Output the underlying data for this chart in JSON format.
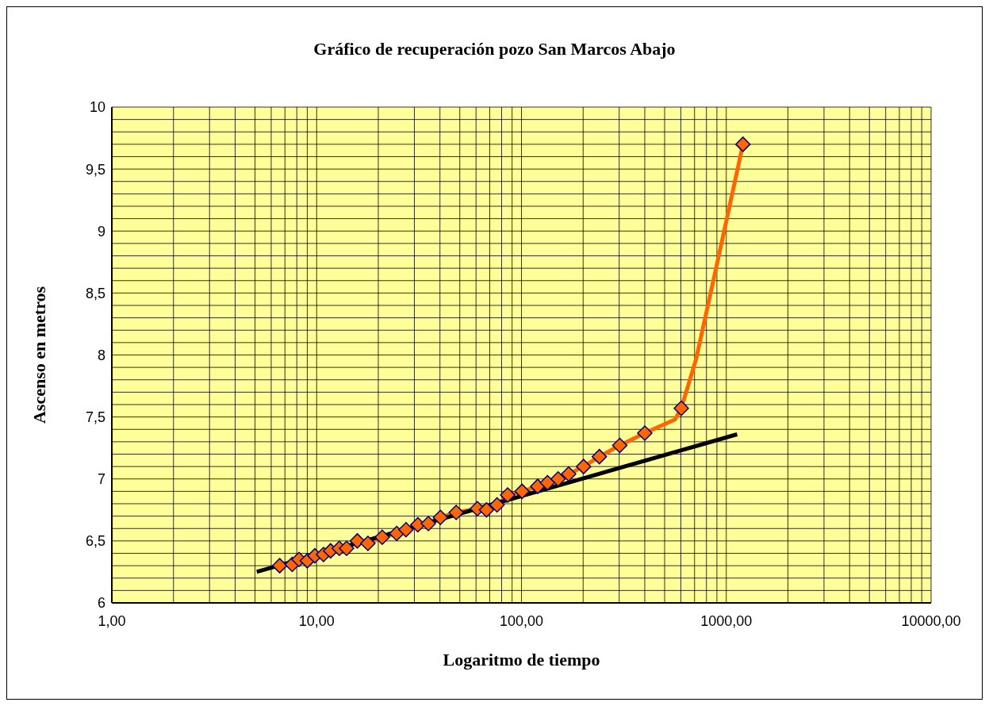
{
  "chart_data": {
    "type": "line",
    "title": "Gráfico de recuperación pozo San Marcos Abajo",
    "xlabel": "Logaritmo de tiempo",
    "ylabel": "Ascenso en metros",
    "log": "x",
    "grid": true,
    "xlim": [
      1,
      10000
    ],
    "xticks": [
      {
        "value": 1,
        "label": "1,00"
      },
      {
        "value": 2,
        "label": null
      },
      {
        "value": 3,
        "label": null
      },
      {
        "value": 4,
        "label": null
      },
      {
        "value": 5,
        "label": null
      },
      {
        "value": 6,
        "label": null
      },
      {
        "value": 7,
        "label": null
      },
      {
        "value": 8,
        "label": null
      },
      {
        "value": 9,
        "label": null
      },
      {
        "value": 10,
        "label": "10,00"
      },
      {
        "value": 20,
        "label": null
      },
      {
        "value": 30,
        "label": null
      },
      {
        "value": 40,
        "label": null
      },
      {
        "value": 50,
        "label": null
      },
      {
        "value": 60,
        "label": null
      },
      {
        "value": 70,
        "label": null
      },
      {
        "value": 80,
        "label": null
      },
      {
        "value": 90,
        "label": null
      },
      {
        "value": 100,
        "label": "100,00"
      },
      {
        "value": 200,
        "label": null
      },
      {
        "value": 300,
        "label": null
      },
      {
        "value": 400,
        "label": null
      },
      {
        "value": 500,
        "label": null
      },
      {
        "value": 600,
        "label": null
      },
      {
        "value": 700,
        "label": null
      },
      {
        "value": 800,
        "label": null
      },
      {
        "value": 900,
        "label": null
      },
      {
        "value": 1000,
        "label": "1000,00"
      },
      {
        "value": 2000,
        "label": null
      },
      {
        "value": 3000,
        "label": null
      },
      {
        "value": 4000,
        "label": null
      },
      {
        "value": 5000,
        "label": null
      },
      {
        "value": 6000,
        "label": null
      },
      {
        "value": 7000,
        "label": null
      },
      {
        "value": 8000,
        "label": null
      },
      {
        "value": 9000,
        "label": null
      },
      {
        "value": 10000,
        "label": "10000,00"
      }
    ],
    "ylim": [
      6,
      10
    ],
    "yticks": [
      6,
      {
        "value": 6.1,
        "label": null
      },
      {
        "value": 6.2,
        "label": null
      },
      {
        "value": 6.3,
        "label": null
      },
      {
        "value": 6.4,
        "label": null
      },
      {
        "value": 6.5,
        "label": "6,5"
      },
      {
        "value": 6.6,
        "label": null
      },
      {
        "value": 6.7,
        "label": null
      },
      {
        "value": 6.8,
        "label": null
      },
      {
        "value": 6.9,
        "label": null
      },
      7,
      {
        "value": 7.1,
        "label": null
      },
      {
        "value": 7.2,
        "label": null
      },
      {
        "value": 7.3,
        "label": null
      },
      {
        "value": 7.4,
        "label": null
      },
      {
        "value": 7.5,
        "label": "7,5"
      },
      {
        "value": 7.6,
        "label": null
      },
      {
        "value": 7.7,
        "label": null
      },
      {
        "value": 7.8,
        "label": null
      },
      {
        "value": 7.9,
        "label": null
      },
      8,
      {
        "value": 8.1,
        "label": null
      },
      {
        "value": 8.2,
        "label": null
      },
      {
        "value": 8.3,
        "label": null
      },
      {
        "value": 8.4,
        "label": null
      },
      {
        "value": 8.5,
        "label": "8,5"
      },
      {
        "value": 8.6,
        "label": null
      },
      {
        "value": 8.7,
        "label": null
      },
      {
        "value": 8.8,
        "label": null
      },
      {
        "value": 8.9,
        "label": null
      },
      9,
      {
        "value": 9.1,
        "label": null
      },
      {
        "value": 9.2,
        "label": null
      },
      {
        "value": 9.3,
        "label": null
      },
      {
        "value": 9.4,
        "label": null
      },
      {
        "value": 9.5,
        "label": "9,5"
      },
      {
        "value": 9.6,
        "label": null
      },
      {
        "value": 9.7,
        "label": null
      },
      {
        "value": 9.8,
        "label": null
      },
      {
        "value": 9.9,
        "label": null
      },
      10
    ],
    "series": [
      {
        "color": "#ff6600",
        "marker": "none",
        "x": [
          6.6,
          7.6,
          8.2,
          9.0,
          9.8,
          10.8,
          11.7,
          12.9,
          14.0,
          15.8,
          17.8,
          20.9,
          24.6,
          27.3,
          31.2,
          35.1,
          40.2,
          48.0,
          60.9,
          67.5,
          76.0,
          85.6,
          100.7,
          120,
          134,
          151,
          170,
          201,
          240,
          302,
          400,
          562,
          603,
          713,
          919,
          1206
        ],
        "values": [
          6.3,
          6.31,
          6.35,
          6.34,
          6.38,
          6.39,
          6.42,
          6.44,
          6.44,
          6.5,
          6.48,
          6.53,
          6.56,
          6.59,
          6.63,
          6.64,
          6.69,
          6.73,
          6.76,
          6.75,
          6.79,
          6.87,
          6.9,
          6.94,
          6.97,
          7.0,
          7.04,
          7.1,
          7.18,
          7.27,
          7.37,
          7.48,
          7.57,
          7.97,
          8.8,
          9.7
        ]
      },
      {
        "type": "scatter",
        "color": "#ff6600",
        "marker": "diamond",
        "x": [
          6.6,
          7.6,
          8.2,
          9.0,
          9.8,
          10.8,
          11.7,
          12.9,
          14.0,
          15.8,
          17.8,
          20.9,
          24.6,
          27.3,
          31.2,
          35.1,
          40.2,
          48.0,
          60.9,
          67.5,
          76.0,
          85.6,
          100.7,
          120,
          134,
          151,
          170,
          201,
          240,
          302,
          400,
          603,
          1206
        ],
        "values": [
          6.3,
          6.31,
          6.35,
          6.34,
          6.38,
          6.39,
          6.42,
          6.44,
          6.44,
          6.5,
          6.48,
          6.53,
          6.56,
          6.59,
          6.63,
          6.64,
          6.69,
          6.73,
          6.76,
          6.75,
          6.79,
          6.87,
          6.9,
          6.94,
          6.97,
          7.0,
          7.04,
          7.1,
          7.18,
          7.27,
          7.37,
          7.57,
          9.7
        ]
      },
      {
        "type": "line",
        "color": "#000000",
        "marker": "none",
        "x": [
          5.1,
          1130
        ],
        "values": [
          6.25,
          7.36
        ]
      }
    ]
  }
}
